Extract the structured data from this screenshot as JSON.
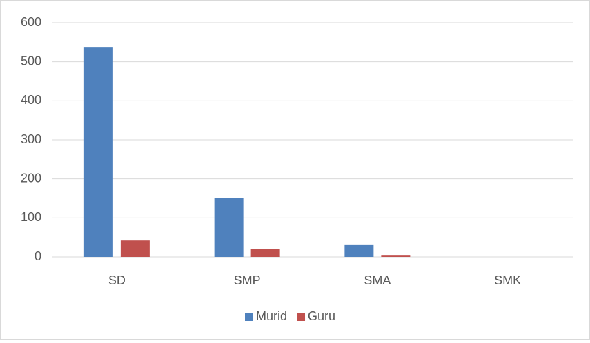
{
  "chart_data": {
    "type": "bar",
    "categories": [
      "SD",
      "SMP",
      "SMA",
      "SMK"
    ],
    "series": [
      {
        "name": "Murid",
        "color": "#4f81bd",
        "values": [
          538,
          150,
          32,
          0
        ]
      },
      {
        "name": "Guru",
        "color": "#c0504d",
        "values": [
          42,
          20,
          5,
          0
        ]
      }
    ],
    "ylim": [
      0,
      600
    ],
    "yticks": [
      0,
      100,
      200,
      300,
      400,
      500,
      600
    ],
    "grid": true,
    "legend": "bottom"
  }
}
